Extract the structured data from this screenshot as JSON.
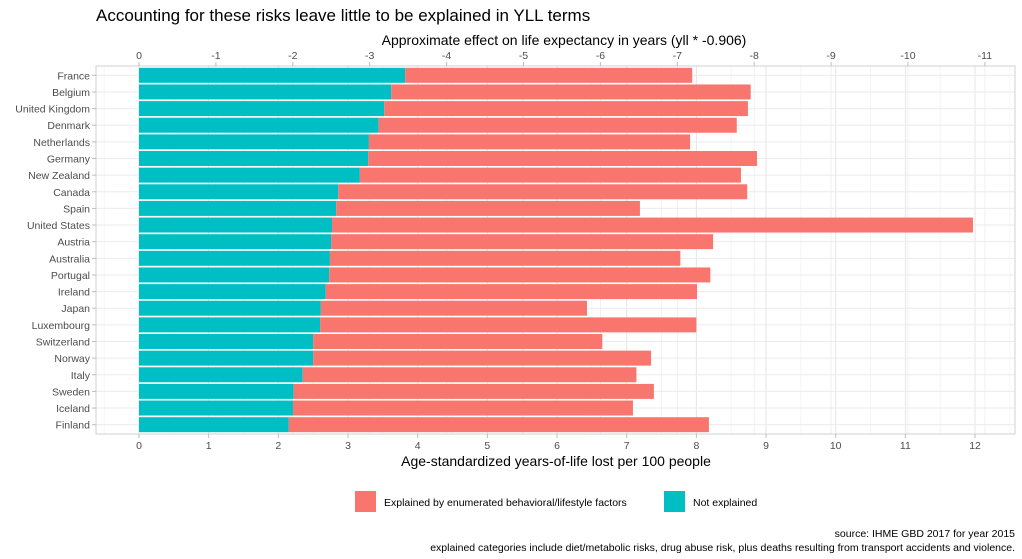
{
  "chart_data": {
    "type": "bar",
    "orientation": "horizontal",
    "stacked": true,
    "title": "Accounting for these risks leave little to be explained in YLL terms",
    "xlabel": "Age-standardized years-of-life lost per 100 people",
    "x2label": "Approximate effect on life expectancy in years (yll * -0.906)",
    "xlim": [
      -0.5,
      12.5
    ],
    "xticks": [
      0,
      1,
      2,
      3,
      4,
      5,
      6,
      7,
      8,
      9,
      10,
      11,
      12
    ],
    "x2ticks": [
      0,
      -1,
      -2,
      -3,
      -4,
      -5,
      -6,
      -7,
      -8,
      -9,
      -10,
      -11
    ],
    "x2_multiplier": -0.906,
    "grid": true,
    "legend_position": "bottom",
    "categories": [
      "France",
      "Belgium",
      "United Kingdom",
      "Denmark",
      "Netherlands",
      "Germany",
      "New Zealand",
      "Canada",
      "Spain",
      "United States",
      "Austria",
      "Australia",
      "Portugal",
      "Ireland",
      "Japan",
      "Luxembourg",
      "Switzerland",
      "Norway",
      "Italy",
      "Sweden",
      "Iceland",
      "Finland"
    ],
    "series": [
      {
        "name": "Not explained",
        "color": "#00BFC4",
        "values": [
          3.82,
          3.62,
          3.52,
          3.44,
          3.3,
          3.29,
          3.17,
          2.86,
          2.83,
          2.77,
          2.76,
          2.74,
          2.73,
          2.68,
          2.61,
          2.6,
          2.5,
          2.5,
          2.35,
          2.22,
          2.21,
          2.15
        ]
      },
      {
        "name": "Explained by enumerated behavioral/lifestyle factors",
        "color": "#F8766D",
        "values": [
          4.12,
          5.16,
          5.22,
          5.14,
          4.61,
          5.58,
          5.47,
          5.87,
          4.36,
          9.2,
          5.48,
          5.03,
          5.47,
          5.33,
          3.82,
          5.4,
          4.15,
          4.85,
          4.79,
          5.17,
          4.88,
          6.03
        ]
      }
    ],
    "legend": [
      {
        "label": "Explained by enumerated behavioral/lifestyle factors",
        "color": "#F8766D"
      },
      {
        "label": "Not explained",
        "color": "#00BFC4"
      }
    ],
    "caption_lines": [
      "source: IHME GBD 2017 for year 2015",
      "explained categories include diet/metabolic risks, drug abuse risk, plus deaths resulting from transport accidents and violence."
    ]
  }
}
